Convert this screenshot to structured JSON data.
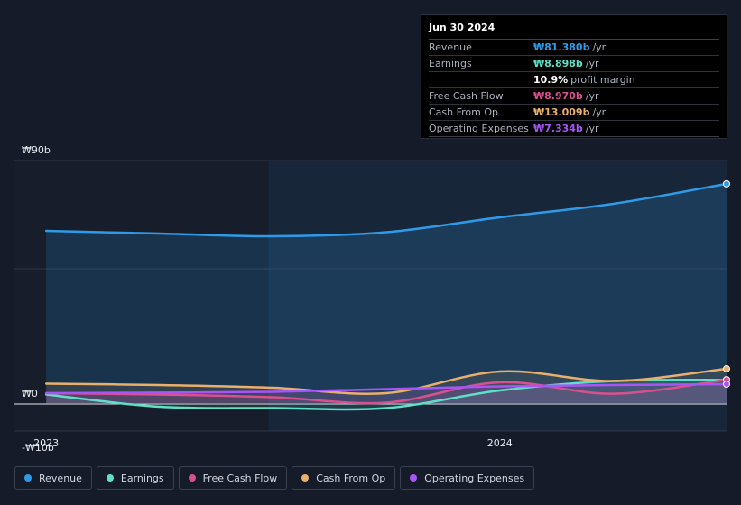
{
  "tooltip": {
    "date": "Jun 30 2024",
    "rows": [
      {
        "label": "Revenue",
        "value": "₩81.380b",
        "unit": "/yr",
        "color": "#2f9be8"
      },
      {
        "label": "Earnings",
        "value": "₩8.898b",
        "unit": "/yr",
        "color": "#5ee0c8"
      },
      {
        "label": "",
        "value": "10.9%",
        "unit": "profit margin",
        "color": "#ffffff"
      },
      {
        "label": "Free Cash Flow",
        "value": "₩8.970b",
        "unit": "/yr",
        "color": "#d9508f"
      },
      {
        "label": "Cash From Op",
        "value": "₩13.009b",
        "unit": "/yr",
        "color": "#e8b06a"
      },
      {
        "label": "Operating Expenses",
        "value": "₩7.334b",
        "unit": "/yr",
        "color": "#a855f7"
      }
    ]
  },
  "legend": [
    {
      "label": "Revenue",
      "color": "#2f9be8"
    },
    {
      "label": "Earnings",
      "color": "#5ee0c8"
    },
    {
      "label": "Free Cash Flow",
      "color": "#d9508f"
    },
    {
      "label": "Cash From Op",
      "color": "#e8b06a"
    },
    {
      "label": "Operating Expenses",
      "color": "#a855f7"
    }
  ],
  "chart_data": {
    "type": "line",
    "title": "",
    "ylim": [
      -10,
      90
    ],
    "y_ticks": [
      {
        "value": 90,
        "label": "₩90b"
      },
      {
        "value": 0,
        "label": "₩0"
      },
      {
        "value": -10,
        "label": "-₩10b"
      }
    ],
    "x_ticks": [
      {
        "value": 2023.0,
        "label": "2023"
      },
      {
        "value": 2024.0,
        "label": "2024"
      }
    ],
    "xlim": [
      2022.93,
      2024.5
    ],
    "highlight_start": 2023.49,
    "x": [
      2023.0,
      2023.25,
      2023.5,
      2023.75,
      2024.0,
      2024.25,
      2024.5
    ],
    "series": [
      {
        "name": "Revenue",
        "color": "#2f9be8",
        "values": [
          64.0,
          63.0,
          62.0,
          63.5,
          69.0,
          74.0,
          81.38
        ]
      },
      {
        "name": "Earnings",
        "color": "#5ee0c8",
        "values": [
          3.5,
          -1.0,
          -1.5,
          -1.5,
          5.0,
          8.5,
          8.9
        ]
      },
      {
        "name": "Free Cash Flow",
        "color": "#d9508f",
        "values": [
          4.0,
          3.5,
          2.5,
          0.5,
          8.0,
          3.8,
          8.97
        ]
      },
      {
        "name": "Cash From Op",
        "color": "#e8b06a",
        "values": [
          7.5,
          7.0,
          6.0,
          4.0,
          12.0,
          8.5,
          13.01
        ]
      },
      {
        "name": "Operating Expenses",
        "color": "#a855f7",
        "values": [
          4.0,
          4.2,
          4.5,
          5.5,
          6.5,
          7.0,
          7.33
        ]
      }
    ]
  }
}
